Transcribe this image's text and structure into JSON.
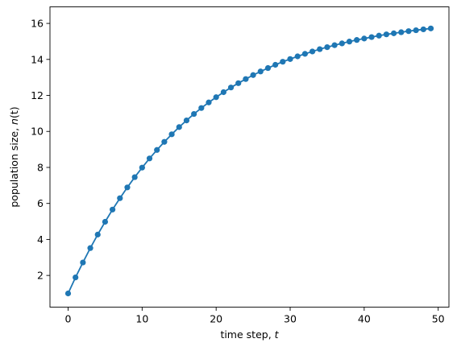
{
  "chart_data": {
    "type": "line",
    "title": "",
    "xlabel": {
      "prefix": "time step, ",
      "var": "t"
    },
    "ylabel": {
      "prefix": "population size, ",
      "var": "n",
      "suffix": "(t)"
    },
    "xlim": [
      -2.45,
      51.45
    ],
    "ylim": [
      0.24,
      16.92
    ],
    "xticks": [
      0,
      10,
      20,
      30,
      40,
      50
    ],
    "yticks": [
      2,
      4,
      6,
      8,
      10,
      12,
      14,
      16
    ],
    "grid": false,
    "legend": "none",
    "series": [
      {
        "color": "#1f77b4",
        "marker": "circle",
        "x": [
          0,
          1,
          2,
          3,
          4,
          5,
          6,
          7,
          8,
          9,
          10,
          11,
          12,
          13,
          14,
          15,
          16,
          17,
          18,
          19,
          20,
          21,
          22,
          23,
          24,
          25,
          26,
          27,
          28,
          29,
          30,
          31,
          32,
          33,
          34,
          35,
          36,
          37,
          38,
          39,
          40,
          41,
          42,
          43,
          44,
          45,
          46,
          47,
          48,
          49
        ],
        "y": [
          1.0,
          1.89,
          2.72,
          3.52,
          4.27,
          4.98,
          5.66,
          6.29,
          6.89,
          7.46,
          7.99,
          8.5,
          8.97,
          9.42,
          9.84,
          10.24,
          10.61,
          10.97,
          11.3,
          11.61,
          11.9,
          12.18,
          12.44,
          12.68,
          12.91,
          13.13,
          13.33,
          13.52,
          13.7,
          13.87,
          14.02,
          14.17,
          14.31,
          14.44,
          14.57,
          14.68,
          14.79,
          14.89,
          14.99,
          15.08,
          15.16,
          15.24,
          15.32,
          15.39,
          15.45,
          15.51,
          15.57,
          15.62,
          15.67,
          15.72
        ]
      }
    ]
  }
}
